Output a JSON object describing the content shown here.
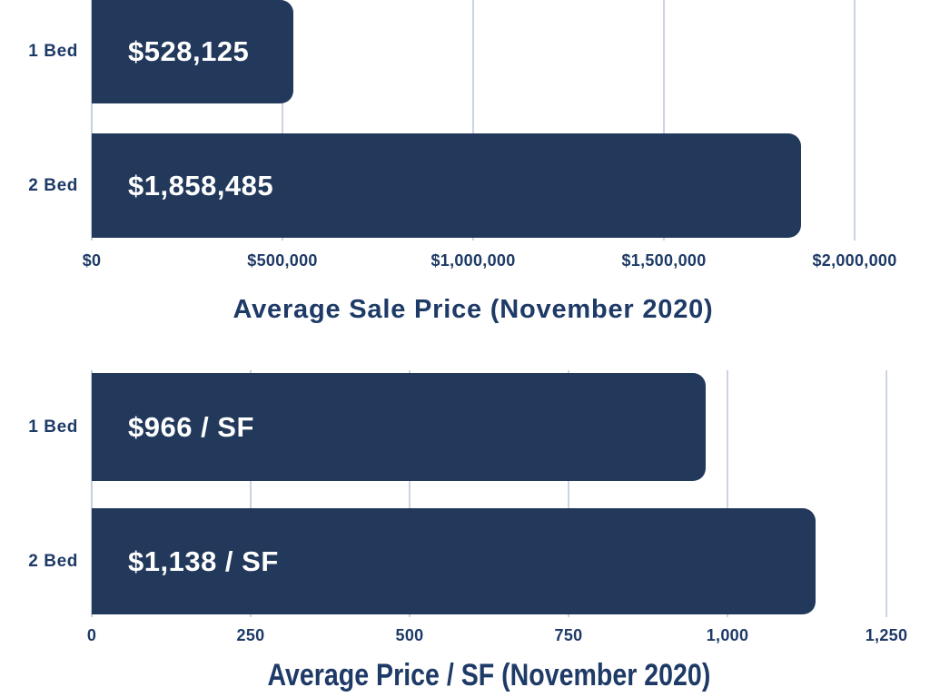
{
  "colors": {
    "bar": "#22395c",
    "ink": "#1e3a66",
    "gridline": "#ccd4e1",
    "axis_line": "#c6cfdd",
    "value_text": "#ffffff",
    "background": "#ffffff"
  },
  "chart_data": [
    {
      "type": "bar",
      "orientation": "horizontal",
      "title": "Average Sale Price (November 2020)",
      "categories": [
        "1 Bed",
        "2 Bed"
      ],
      "values": [
        528125,
        1858485
      ],
      "value_labels": [
        "$528,125",
        "$1,858,485"
      ],
      "x_ticks": [
        {
          "label": "$0",
          "value": 0
        },
        {
          "label": "$500,000",
          "value": 500000
        },
        {
          "label": "$1,000,000",
          "value": 1000000
        },
        {
          "label": "$1,500,000",
          "value": 1500000
        },
        {
          "label": "$2,000,000",
          "value": 2000000
        }
      ],
      "xlim": [
        0,
        2000000
      ],
      "grid": true,
      "legend": false,
      "value_label_position": "inside-start",
      "bar_corner": "rounded-right"
    },
    {
      "type": "bar",
      "orientation": "horizontal",
      "title": "Average Price / SF (November 2020)",
      "categories": [
        "1 Bed",
        "2 Bed"
      ],
      "values": [
        966,
        1138
      ],
      "value_labels": [
        "$966 / SF",
        "$1,138 / SF"
      ],
      "x_ticks": [
        {
          "label": "0",
          "value": 0
        },
        {
          "label": "250",
          "value": 250
        },
        {
          "label": "500",
          "value": 500
        },
        {
          "label": "750",
          "value": 750
        },
        {
          "label": "1,000",
          "value": 1000
        },
        {
          "label": "1,250",
          "value": 1250
        }
      ],
      "xlim": [
        0,
        1250
      ],
      "grid": true,
      "legend": false,
      "value_label_position": "inside-start",
      "bar_corner": "rounded-right"
    }
  ]
}
